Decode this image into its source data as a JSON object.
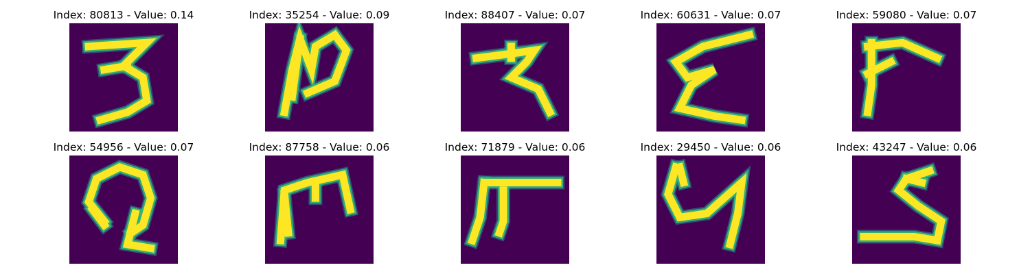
{
  "figure": {
    "background_color": "#440154",
    "stroke_color": "#fde725",
    "edge_color": "#35b779",
    "halo_color": "#21918c",
    "panels": [
      {
        "title": "Index: 80813 - Value: 0.14",
        "glyph": "3-like handwritten character",
        "strokes": [
          [
            [
              5,
              6
            ],
            [
              20,
              5
            ],
            [
              14,
              11
            ],
            [
              19,
              14
            ],
            [
              20,
              20
            ],
            [
              15,
              23
            ],
            [
              8,
              25
            ]
          ],
          [
            [
              9,
              12
            ],
            [
              15,
              11
            ]
          ]
        ]
      },
      {
        "title": "Index: 35254 - Value: 0.09",
        "glyph": "N-like handwritten character",
        "strokes": [
          [
            [
              5,
              23
            ],
            [
              7,
              12
            ],
            [
              9,
              4
            ],
            [
              12,
              12
            ],
            [
              13,
              6
            ],
            [
              18,
              3
            ],
            [
              21,
              7
            ],
            [
              18,
              15
            ],
            [
              11,
              18
            ]
          ],
          [
            [
              9,
              4
            ],
            [
              7,
              19
            ]
          ]
        ]
      },
      {
        "title": "Index: 88407 - Value: 0.07",
        "glyph": "cursive r-like character",
        "strokes": [
          [
            [
              4,
              9
            ],
            [
              12,
              8
            ],
            [
              19,
              7
            ],
            [
              17,
              10
            ],
            [
              13,
              14
            ],
            [
              20,
              17
            ],
            [
              23,
              23
            ]
          ],
          [
            [
              13,
              6
            ],
            [
              13,
              9
            ]
          ]
        ]
      },
      {
        "title": "Index: 60631 - Value: 0.07",
        "glyph": "epsilon-like handwritten character",
        "strokes": [
          [
            [
              24,
              3
            ],
            [
              12,
              6
            ],
            [
              5,
              10
            ],
            [
              8,
              14
            ],
            [
              15,
              12
            ],
            [
              9,
              16
            ],
            [
              6,
              22
            ],
            [
              15,
              24
            ],
            [
              22,
              25
            ]
          ]
        ]
      },
      {
        "title": "Index: 59080 - Value: 0.07",
        "glyph": "hook-shaped handwritten character",
        "strokes": [
          [
            [
              4,
              6
            ],
            [
              13,
              5
            ],
            [
              22,
              9
            ]
          ],
          [
            [
              5,
              5
            ],
            [
              5,
              16
            ],
            [
              4,
              23
            ]
          ],
          [
            [
              4,
              13
            ],
            [
              10,
              10
            ]
          ]
        ]
      },
      {
        "title": "Index: 54956 - Value: 0.07",
        "glyph": "loop-shaped handwritten character",
        "strokes": [
          [
            [
              9,
              17
            ],
            [
              5,
              12
            ],
            [
              7,
              6
            ],
            [
              13,
              3
            ],
            [
              19,
              5
            ],
            [
              21,
              11
            ],
            [
              19,
              18
            ],
            [
              16,
              20
            ]
          ],
          [
            [
              17,
              15
            ],
            [
              15,
              23
            ],
            [
              21,
              24
            ]
          ],
          [
            [
              6,
              14
            ],
            [
              9,
              18
            ]
          ]
        ]
      },
      {
        "title": "Index: 87758 - Value: 0.06",
        "glyph": "m-like handwritten character",
        "strokes": [
          [
            [
              4,
              22
            ],
            [
              5,
              9
            ],
            [
              11,
              7
            ],
            [
              20,
              5
            ],
            [
              22,
              14
            ]
          ],
          [
            [
              13,
              8
            ],
            [
              13,
              11
            ]
          ],
          [
            [
              5,
              10
            ],
            [
              6,
              20
            ]
          ]
        ]
      },
      {
        "title": "Index: 71879 - Value: 0.06",
        "glyph": "pi-like handwritten character",
        "strokes": [
          [
            [
              7,
              7
            ],
            [
              15,
              7
            ],
            [
              25,
              7
            ]
          ],
          [
            [
              6,
              7
            ],
            [
              5,
              16
            ],
            [
              3,
              22
            ]
          ],
          [
            [
              11,
              9
            ],
            [
              11,
              17
            ],
            [
              10,
              20
            ]
          ]
        ]
      },
      {
        "title": "Index: 29450 - Value: 0.06",
        "glyph": "y-like handwritten character",
        "strokes": [
          [
            [
              5,
              3
            ],
            [
              3,
              10
            ],
            [
              6,
              16
            ],
            [
              13,
              15
            ],
            [
              22,
              7
            ],
            [
              21,
              15
            ],
            [
              19,
              23
            ]
          ],
          [
            [
              6,
              3
            ],
            [
              7,
              7
            ]
          ]
        ]
      },
      {
        "title": "Index: 43247 - Value: 0.06",
        "glyph": "5-like handwritten character",
        "strokes": [
          [
            [
              20,
              4
            ],
            [
              14,
              6
            ],
            [
              12,
              9
            ],
            [
              17,
              13
            ],
            [
              23,
              17
            ],
            [
              22,
              22
            ],
            [
              16,
              21
            ],
            [
              3,
              21
            ]
          ],
          [
            [
              14,
              6
            ],
            [
              18,
              7
            ]
          ]
        ]
      }
    ]
  }
}
